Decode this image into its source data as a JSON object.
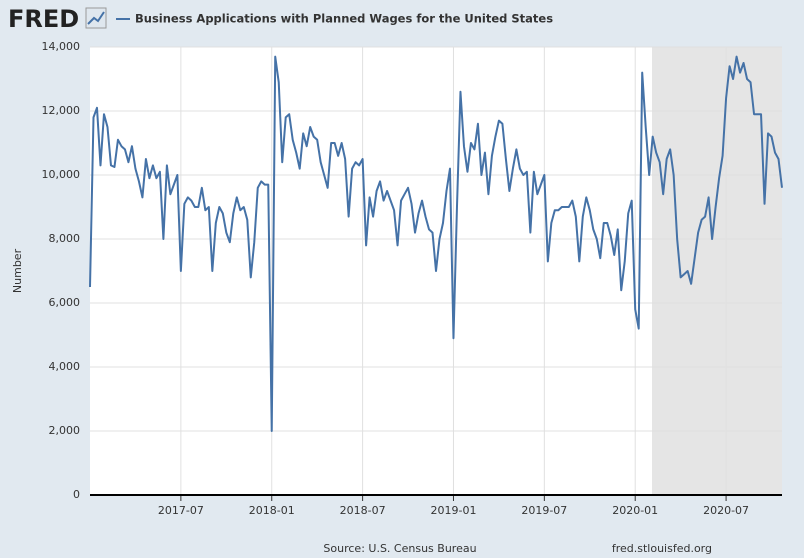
{
  "logo": "FRED",
  "chart_data": {
    "type": "line",
    "title": "Business Applications with Planned Wages for the United States",
    "y_label": "Number",
    "source": "Source: U.S. Census Bureau",
    "site": "fred.stlouisfed.org",
    "color": "#4572a7",
    "grid": true,
    "categories": [
      null,
      null,
      null,
      null,
      null,
      null,
      null,
      null,
      null,
      null,
      null,
      null,
      null,
      null,
      null,
      null,
      null,
      null,
      null,
      null,
      null,
      null,
      null,
      null,
      null,
      null,
      "2017-07",
      null,
      null,
      null,
      null,
      null,
      null,
      null,
      null,
      null,
      null,
      null,
      null,
      null,
      null,
      null,
      null,
      null,
      null,
      null,
      null,
      null,
      null,
      null,
      null,
      null,
      "2018-01",
      null,
      null,
      null,
      null,
      null,
      null,
      null,
      null,
      null,
      null,
      null,
      null,
      null,
      null,
      null,
      null,
      null,
      null,
      null,
      null,
      null,
      null,
      null,
      null,
      null,
      "2018-07",
      null,
      null,
      null,
      null,
      null,
      null,
      null,
      null,
      null,
      null,
      null,
      null,
      null,
      null,
      null,
      null,
      null,
      null,
      null,
      null,
      null,
      null,
      null,
      null,
      null,
      "2019-01",
      null,
      null,
      null,
      null,
      null,
      null,
      null,
      null,
      null,
      null,
      null,
      null,
      null,
      null,
      null,
      null,
      null,
      null,
      null,
      null,
      null,
      null,
      null,
      null,
      null,
      "2019-07",
      null,
      null,
      null,
      null,
      null,
      null,
      null,
      null,
      null,
      null,
      null,
      null,
      null,
      null,
      null,
      null,
      null,
      null,
      null,
      null,
      null,
      null,
      null,
      null,
      null,
      "2020-01",
      null,
      null,
      null,
      null,
      null,
      null,
      null,
      null,
      null,
      null,
      null,
      null,
      null,
      null,
      null,
      null,
      null,
      null,
      null,
      null,
      null,
      null,
      null,
      null,
      null,
      "2020-07",
      null,
      null,
      null,
      null,
      null,
      null,
      null,
      null,
      null,
      null,
      null,
      null,
      null,
      null,
      null,
      null
    ],
    "values": [
      6500,
      11800,
      12100,
      10300,
      11900,
      11500,
      10300,
      10250,
      11100,
      10900,
      10800,
      10400,
      10900,
      10200,
      9800,
      9300,
      10500,
      9900,
      10300,
      9900,
      10100,
      8000,
      10300,
      9400,
      9700,
      10000,
      7000,
      9100,
      9300,
      9200,
      9000,
      9000,
      9600,
      8900,
      9000,
      7000,
      8500,
      9000,
      8800,
      8200,
      7900,
      8800,
      9300,
      8900,
      9000,
      8600,
      6800,
      7900,
      9600,
      9800,
      9700,
      9700,
      2000,
      13700,
      12900,
      10400,
      11800,
      11900,
      11100,
      10700,
      10200,
      11300,
      10900,
      11500,
      11200,
      11100,
      10400,
      10000,
      9600,
      11000,
      11000,
      10600,
      11000,
      10500,
      8700,
      10200,
      10400,
      10300,
      10500,
      7800,
      9300,
      8700,
      9500,
      9800,
      9200,
      9500,
      9200,
      8900,
      7800,
      9200,
      9400,
      9600,
      9100,
      8200,
      8800,
      9200,
      8700,
      8300,
      8200,
      7000,
      8000,
      8500,
      9500,
      10200,
      4900,
      9000,
      12600,
      10900,
      10100,
      11000,
      10800,
      11600,
      10000,
      10700,
      9400,
      10600,
      11200,
      11700,
      11600,
      10500,
      9500,
      10200,
      10800,
      10200,
      10000,
      10100,
      8200,
      10100,
      9400,
      9700,
      10000,
      7300,
      8500,
      8900,
      8900,
      9000,
      9000,
      9000,
      9200,
      8700,
      7300,
      8700,
      9300,
      8900,
      8300,
      8000,
      7400,
      8500,
      8500,
      8100,
      7500,
      8300,
      6400,
      7300,
      8800,
      9200,
      5800,
      5200,
      13200,
      11500,
      10000,
      11200,
      10700,
      10400,
      9400,
      10500,
      10800,
      10000,
      8000,
      6800,
      6900,
      7000,
      6600,
      7400,
      8200,
      8600,
      8700,
      9300,
      8000,
      9000,
      9900,
      10600,
      12400,
      13400,
      13000,
      13700,
      13200,
      13500,
      13000,
      12900,
      11900,
      11900,
      11900,
      9100,
      11300,
      11200,
      10700,
      10500,
      9600
    ],
    "ylim": [
      0,
      14000
    ],
    "yticks": [
      0,
      {
        "value": 2000,
        "label": "2,000"
      },
      {
        "value": 4000,
        "label": "4,000"
      },
      {
        "value": 6000,
        "label": "6,000"
      },
      {
        "value": 8000,
        "label": "8,000"
      },
      {
        "value": 10000,
        "label": "10,000"
      },
      {
        "value": 12000,
        "label": "12,000"
      },
      {
        "value": 14000,
        "label": "14,000"
      }
    ]
  }
}
